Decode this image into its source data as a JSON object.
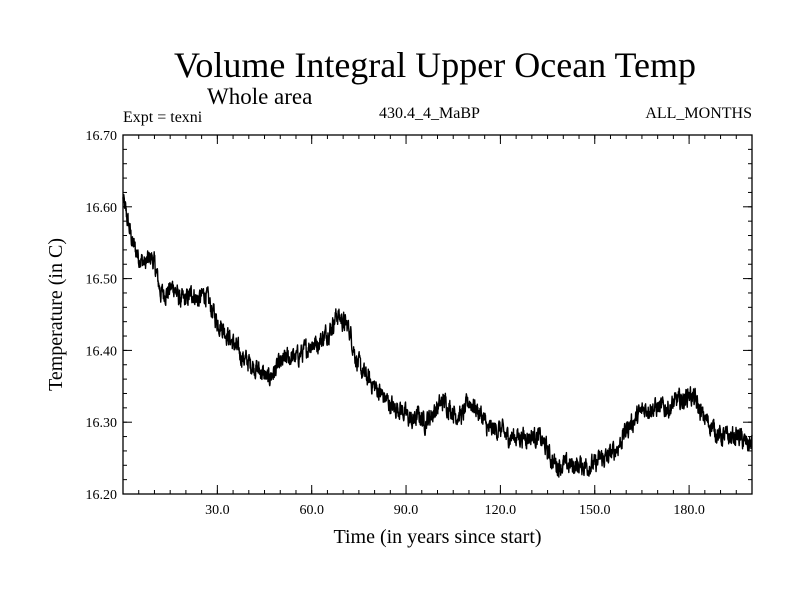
{
  "header": {
    "title": "Volume Integral Upper Ocean Temp",
    "subtitle": "Whole area",
    "expt_label": "Expt = texni",
    "run_label": "430.4_4_MaBP",
    "months_label": "ALL_MONTHS"
  },
  "chart_data": {
    "type": "line",
    "title": "Volume Integral Upper Ocean Temp",
    "subtitle": "Whole area",
    "xlabel": "Time (in years since start)",
    "ylabel": "Temperature (in C)",
    "xlim": [
      0,
      200
    ],
    "ylim": [
      16.2,
      16.7
    ],
    "x_ticks": [
      30,
      60,
      90,
      120,
      150,
      180
    ],
    "x_tick_labels": [
      "30.0",
      "60.0",
      "90.0",
      "120.0",
      "150.0",
      "180.0"
    ],
    "y_ticks": [
      16.2,
      16.3,
      16.4,
      16.5,
      16.6,
      16.7
    ],
    "y_tick_labels": [
      "16.20",
      "16.30",
      "16.40",
      "16.50",
      "16.60",
      "16.70"
    ],
    "grid": false,
    "series": [
      {
        "name": "Expt = texni",
        "color": "#000000",
        "x": [
          0,
          1,
          2,
          3,
          5,
          7,
          9,
          10,
          12,
          14,
          16,
          18,
          20,
          22,
          24,
          26,
          28,
          30,
          32,
          35,
          38,
          41,
          44,
          46,
          48,
          50,
          52,
          55,
          58,
          60,
          62,
          64,
          66,
          68,
          70,
          72,
          74,
          76,
          78,
          80,
          82,
          84,
          86,
          88,
          90,
          92,
          94,
          96,
          98,
          100,
          102,
          104,
          106,
          108,
          110,
          112,
          114,
          116,
          118,
          120,
          122,
          124,
          126,
          128,
          130,
          132,
          134,
          136,
          138,
          140,
          142,
          144,
          146,
          148,
          150,
          152,
          154,
          156,
          158,
          160,
          162,
          164,
          166,
          168,
          170,
          172,
          174,
          176,
          178,
          180,
          182,
          184,
          186,
          188,
          190,
          192,
          194,
          196,
          198,
          200
        ],
        "values": [
          16.61,
          16.59,
          16.57,
          16.55,
          16.53,
          16.52,
          16.53,
          16.52,
          16.48,
          16.48,
          16.49,
          16.47,
          16.47,
          16.48,
          16.47,
          16.48,
          16.46,
          16.44,
          16.43,
          16.41,
          16.39,
          16.38,
          16.37,
          16.36,
          16.37,
          16.38,
          16.39,
          16.39,
          16.4,
          16.41,
          16.41,
          16.42,
          16.43,
          16.45,
          16.44,
          16.43,
          16.39,
          16.37,
          16.36,
          16.35,
          16.34,
          16.33,
          16.32,
          16.32,
          16.31,
          16.3,
          16.31,
          16.3,
          16.31,
          16.32,
          16.33,
          16.32,
          16.31,
          16.31,
          16.33,
          16.32,
          16.31,
          16.29,
          16.29,
          16.29,
          16.28,
          16.28,
          16.28,
          16.28,
          16.28,
          16.28,
          16.27,
          16.25,
          16.24,
          16.24,
          16.24,
          16.24,
          16.24,
          16.24,
          16.24,
          16.25,
          16.25,
          16.26,
          16.27,
          16.29,
          16.3,
          16.31,
          16.32,
          16.32,
          16.32,
          16.32,
          16.32,
          16.33,
          16.33,
          16.34,
          16.33,
          16.31,
          16.3,
          16.29,
          16.28,
          16.28,
          16.28,
          16.28,
          16.27,
          16.27
        ]
      }
    ]
  }
}
